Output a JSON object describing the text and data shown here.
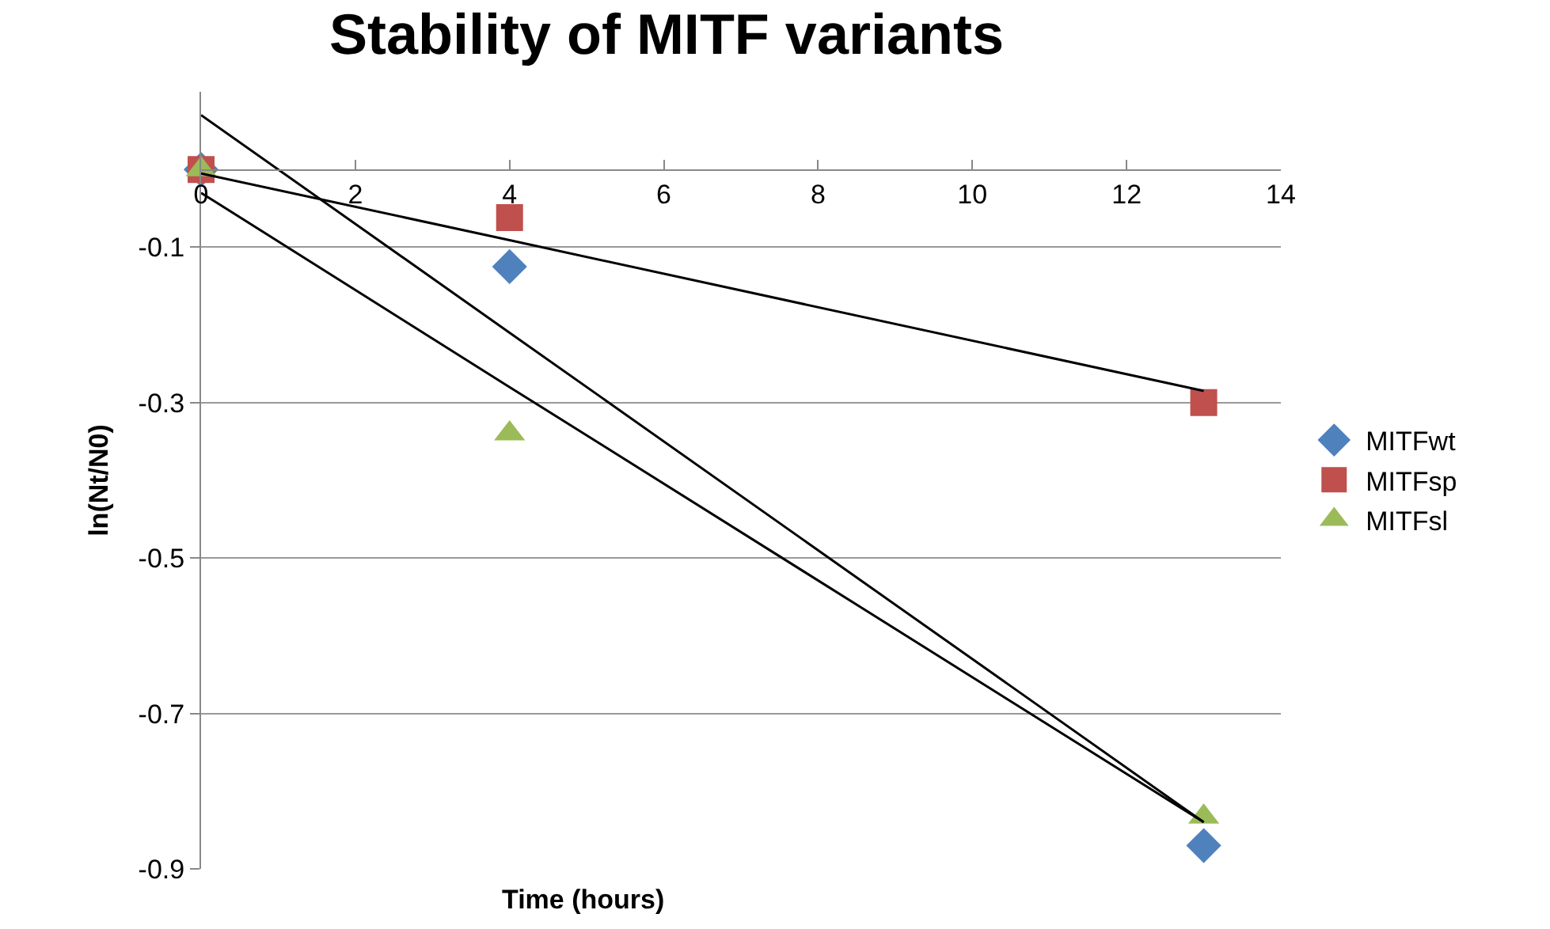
{
  "chart_data": {
    "type": "scatter",
    "title": "Stability of MITF variants",
    "xlabel": "Time (hours)",
    "ylabel": "ln(Nt/N0)",
    "x": [
      0,
      4,
      13
    ],
    "series": [
      {
        "name": "MITFwt",
        "color": "#4f81bd",
        "marker": "diamond",
        "values": [
          0,
          -0.125,
          -0.87
        ]
      },
      {
        "name": "MITFsp",
        "color": "#c0504d",
        "marker": "square",
        "values": [
          0,
          -0.062,
          -0.3
        ]
      },
      {
        "name": "MITFsl",
        "color": "#9bbb59",
        "marker": "triangle",
        "values": [
          0,
          -0.34,
          -0.833
        ]
      },
      {
        "type": "line",
        "color": "#000000",
        "values": [
          0.07,
          -0.21,
          -0.84
        ]
      },
      {
        "type": "line",
        "color": "#000000",
        "values": [
          -0.03,
          -0.28,
          -0.84
        ]
      },
      {
        "type": "line",
        "color": "#000000",
        "values": [
          -0.005,
          -0.091,
          -0.285
        ]
      }
    ],
    "xlim": [
      0,
      14
    ],
    "xticks": [
      0,
      2,
      4,
      6,
      8,
      10,
      12,
      14
    ],
    "ylim": [
      -0.9,
      0.1
    ],
    "yticks": [
      -0.9,
      -0.7,
      -0.5,
      -0.3,
      -0.1
    ],
    "grid": "y",
    "legend": "right"
  }
}
